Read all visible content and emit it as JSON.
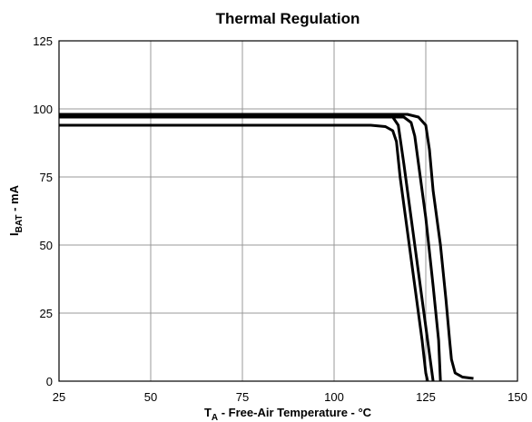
{
  "chart_data": {
    "type": "line",
    "title": "Thermal Regulation",
    "x_label": {
      "main": "T",
      "sub": "A",
      "rest": " - Free-Air Temperature - °C"
    },
    "y_label": {
      "main": "I",
      "sub": "BAT",
      "rest": " - mA"
    },
    "xlim": [
      25,
      150
    ],
    "xticks": [
      25,
      50,
      75,
      100,
      125,
      150
    ],
    "ylim": [
      0,
      125
    ],
    "yticks": [
      0,
      25,
      50,
      75,
      100,
      125
    ],
    "grid": true,
    "series": [
      {
        "color": "#000000",
        "x": [
          25,
          110,
          114,
          116,
          117,
          118,
          120,
          122,
          124,
          125,
          125.5
        ],
        "values": [
          94,
          94,
          93.5,
          92,
          88,
          75,
          55,
          35,
          15,
          3,
          0
        ]
      },
      {
        "color": "#000000",
        "x": [
          25,
          114,
          116,
          117.5,
          119,
          121,
          123,
          125,
          126.5,
          127
        ],
        "values": [
          98,
          98,
          97,
          94,
          80,
          60,
          40,
          20,
          5,
          0
        ]
      },
      {
        "color": "#000000",
        "x": [
          25,
          119,
          121,
          122,
          123,
          125,
          127,
          128.5,
          129
        ],
        "values": [
          97,
          97,
          95,
          90,
          80,
          60,
          35,
          15,
          0
        ]
      },
      {
        "color": "#000000",
        "x": [
          25,
          120,
          123,
          125,
          126,
          127,
          129,
          130.5,
          131.5,
          132,
          133,
          135,
          138
        ],
        "values": [
          98,
          98,
          97,
          94,
          85,
          70,
          50,
          30,
          15,
          8,
          3,
          1.5,
          1
        ]
      }
    ]
  }
}
